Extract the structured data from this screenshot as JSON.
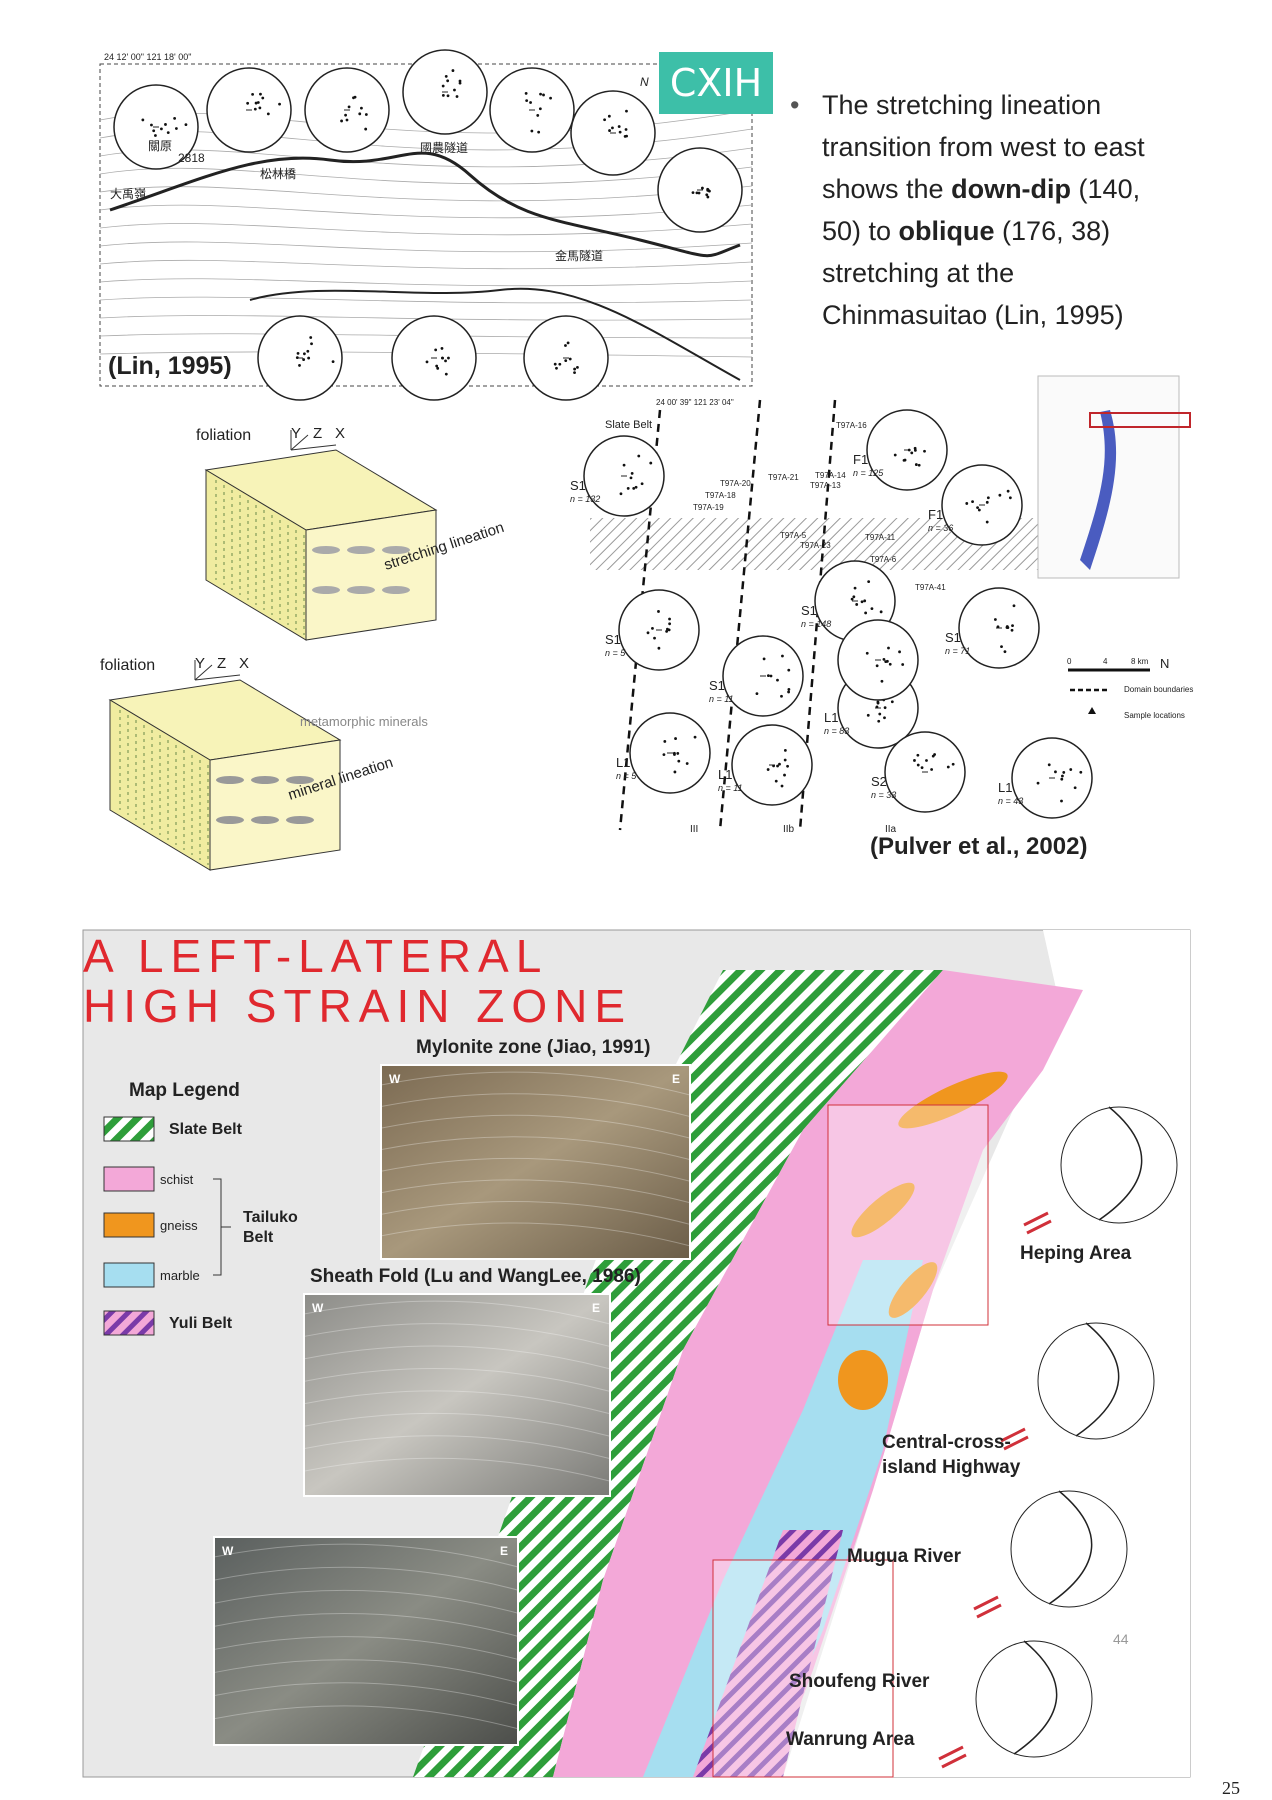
{
  "badge": "CXIH",
  "bullet": {
    "segments": [
      {
        "text": "The stretching lineation transition from west to east shows the "
      },
      {
        "text": "down-dip",
        "bold": true
      },
      {
        "text": " (140, 50) to "
      },
      {
        "text": "oblique",
        "bold": true
      },
      {
        "text": " (176, 38) stretching at the Chinmasuitao (Lin, 1995)"
      }
    ]
  },
  "lin_figure": {
    "citation": "(Lin, 1995)",
    "coords": "24 12' 00\" 121 18' 00\"",
    "north": "N",
    "places": [
      "關原",
      "國農隧道",
      "松林橋",
      "金馬隧道",
      "大禹嶺",
      "2818"
    ]
  },
  "block_diagrams": [
    {
      "plane": "foliation",
      "axes": [
        "Y",
        "Z",
        "X"
      ],
      "lineation": "stretching lineation"
    },
    {
      "plane": "foliation",
      "axes": [
        "Y",
        "Z",
        "X"
      ],
      "minerals": "metamorphic minerals",
      "lineation": "mineral lineation"
    }
  ],
  "pulver_figure": {
    "coords": "24 00' 39\" 121 23' 04\"",
    "belt": "Slate Belt",
    "stereonets": [
      {
        "label": "S1",
        "n": "n = 132"
      },
      {
        "label": "F1",
        "n": "n = 125"
      },
      {
        "label": "F1",
        "n": "n = 36"
      },
      {
        "label": "S1",
        "n": "n = 5"
      },
      {
        "label": "S1",
        "n": "n = 11"
      },
      {
        "label": "S1",
        "n": "n = 148"
      },
      {
        "label": "L1",
        "n": "n = 5"
      },
      {
        "label": "L1",
        "n": "n = 11"
      },
      {
        "label": "L1",
        "n": "n = 83"
      },
      {
        "label": "S2",
        "n": "n = 33"
      },
      {
        "label": "S1",
        "n": "n = 71"
      },
      {
        "label": "L1",
        "n": "n = 43"
      }
    ],
    "samples": [
      "T97A-16",
      "T97A-14",
      "T97A-13",
      "T97A-20",
      "T97A-21",
      "T97A-18",
      "T97A-19",
      "T97A-5",
      "T97A-23",
      "T97A-11",
      "T97A-6",
      "T97A-41"
    ],
    "domains": [
      "III",
      "IIb",
      "IIa"
    ],
    "scale": [
      "0",
      "4",
      "8 km"
    ],
    "north": "N",
    "legend": [
      "Domain boundaries",
      "Sample locations"
    ],
    "citation": "(Pulver et al., 2002)"
  },
  "slide": {
    "title": [
      "A LEFT-LATERAL",
      "HIGH STRAIN ZONE"
    ],
    "photos": [
      {
        "caption": "Mylonite zone (Jiao, 1991)",
        "west": "W",
        "east": "E"
      },
      {
        "caption": "Sheath Fold (Lu and WangLee, 1986)",
        "west": "W",
        "east": "E"
      },
      {
        "west": "W",
        "east": "E"
      }
    ],
    "legend": {
      "title": "Map Legend",
      "items": [
        {
          "label": "Slate Belt",
          "color": "#2e9e3a",
          "hatch": true
        },
        {
          "label": "schist",
          "color": "#f3a8d8"
        },
        {
          "label": "gneiss",
          "color": "#f0961e"
        },
        {
          "label": "marble",
          "color": "#a6def0"
        },
        {
          "label": "Yuli Belt",
          "color": "#7a3aa8",
          "hatch": true
        }
      ],
      "group": "Tailuko Belt"
    },
    "areas": [
      "Heping Area",
      "Central-cross-\nisland Highway",
      "Mugua River",
      "Shoufeng River",
      "Wanrung Area"
    ],
    "slide_number": "44"
  },
  "page_number": "25"
}
